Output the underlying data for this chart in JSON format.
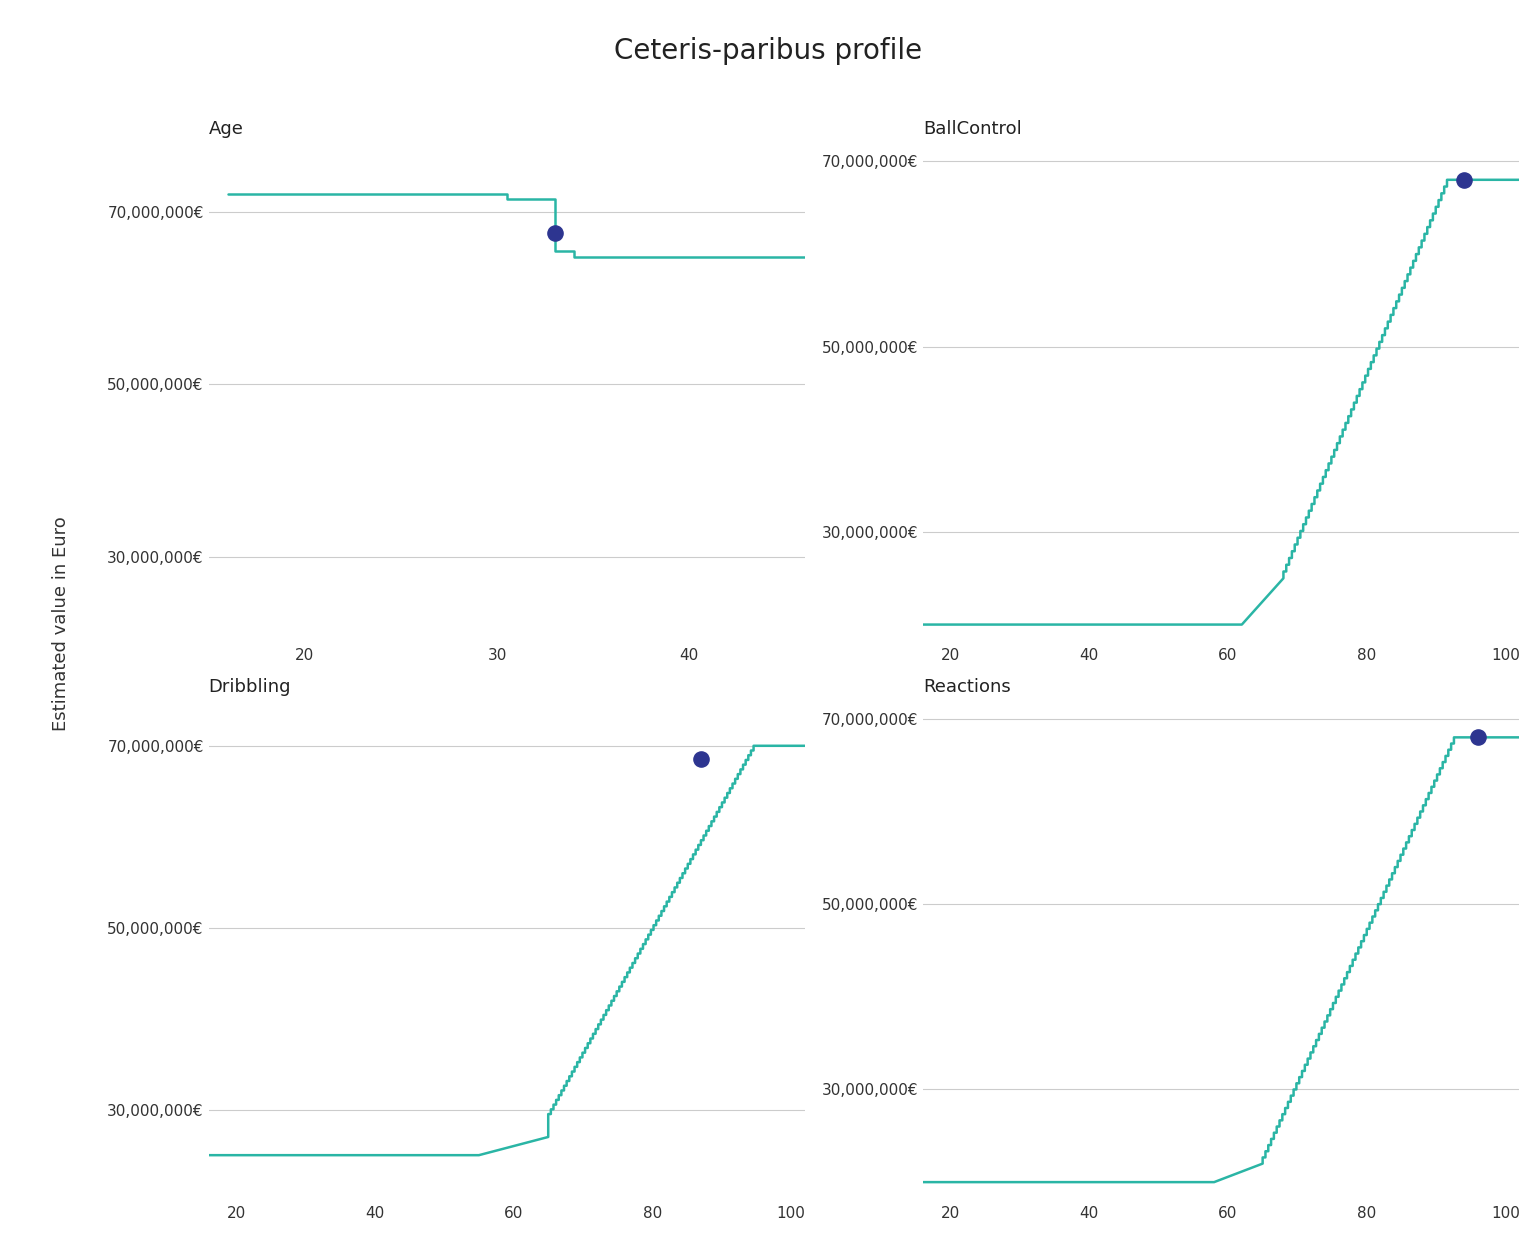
{
  "title": "Ceteris-paribus profile",
  "ylabel": "Estimated value in Euro",
  "line_color": "#2ab5a5",
  "dot_color": "#2d3590",
  "background_color": "#ffffff",
  "grid_color": "#cccccc",
  "subplots": [
    {
      "title": "Age",
      "xlim": [
        15,
        46
      ],
      "xticks": [
        20,
        30,
        40
      ],
      "ylim": [
        20000000,
        78000000
      ],
      "yticks": [
        30000000,
        50000000,
        70000000
      ],
      "dot_x": 33,
      "dot_y": 67500000,
      "curve": "age"
    },
    {
      "title": "BallControl",
      "xlim": [
        16,
        102
      ],
      "xticks": [
        20,
        40,
        60,
        80,
        100
      ],
      "ylim": [
        18000000,
        72000000
      ],
      "yticks": [
        30000000,
        50000000,
        70000000
      ],
      "dot_x": 94,
      "dot_y": 68000000,
      "curve": "ballcontrol"
    },
    {
      "title": "Dribbling",
      "xlim": [
        16,
        102
      ],
      "xticks": [
        20,
        40,
        60,
        80,
        100
      ],
      "ylim": [
        20000000,
        75000000
      ],
      "yticks": [
        30000000,
        50000000,
        70000000
      ],
      "dot_x": 87,
      "dot_y": 68500000,
      "curve": "dribbling"
    },
    {
      "title": "Reactions",
      "xlim": [
        16,
        102
      ],
      "xticks": [
        20,
        40,
        60,
        80,
        100
      ],
      "ylim": [
        18000000,
        72000000
      ],
      "yticks": [
        30000000,
        50000000,
        70000000
      ],
      "dot_x": 96,
      "dot_y": 68000000,
      "curve": "reactions"
    }
  ]
}
